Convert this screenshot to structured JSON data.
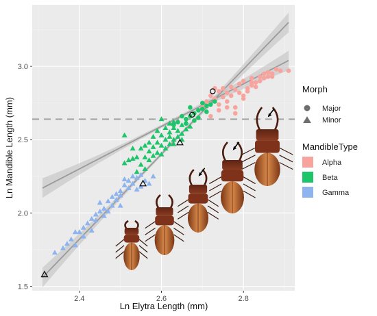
{
  "chart_data": {
    "type": "scatter",
    "xlabel": "Ln Elytra Length (mm)",
    "ylabel": "Ln Mandible Length (mm)",
    "xlim": [
      2.285,
      2.925
    ],
    "ylim": [
      1.47,
      3.42
    ],
    "x_ticks": [
      2.4,
      2.6,
      2.8
    ],
    "x_tick_labels": [
      "2.4",
      "2.6",
      "2.8"
    ],
    "y_ticks": [
      1.5,
      2.0,
      2.5,
      3.0
    ],
    "y_tick_labels": [
      "1.5",
      "2.0",
      "2.5",
      "3.0"
    ],
    "grid": true,
    "threshold_line": {
      "y": 2.64,
      "style": "dashed"
    },
    "fit_lines": [
      {
        "name": "minor_fit",
        "x": [
          2.31,
          2.91
        ],
        "y": [
          1.56,
          3.3
        ]
      },
      {
        "name": "major_fit",
        "x": [
          2.31,
          2.91
        ],
        "y": [
          2.17,
          3.04
        ]
      }
    ],
    "legend_position": "right",
    "legends": {
      "morph": {
        "title": "Morph",
        "items": [
          "Major",
          "Minor"
        ]
      },
      "mandible": {
        "title": "MandibleType",
        "items": [
          {
            "label": "Alpha",
            "color": "#F8A49E"
          },
          {
            "label": "Beta",
            "color": "#1DC46A"
          },
          {
            "label": "Gamma",
            "color": "#8DB4EE"
          }
        ]
      }
    },
    "series": [
      {
        "name": "Alpha",
        "color": "#F8A49E",
        "marker": "circle",
        "points": [
          [
            2.7,
            2.72
          ],
          [
            2.71,
            2.76
          ],
          [
            2.72,
            2.8
          ],
          [
            2.73,
            2.78
          ],
          [
            2.74,
            2.74
          ],
          [
            2.74,
            2.83
          ],
          [
            2.75,
            2.85
          ],
          [
            2.75,
            2.79
          ],
          [
            2.76,
            2.76
          ],
          [
            2.76,
            2.82
          ],
          [
            2.77,
            2.86
          ],
          [
            2.77,
            2.8
          ],
          [
            2.78,
            2.72
          ],
          [
            2.78,
            2.84
          ],
          [
            2.79,
            2.88
          ],
          [
            2.79,
            2.82
          ],
          [
            2.8,
            2.78
          ],
          [
            2.8,
            2.9
          ],
          [
            2.81,
            2.85
          ],
          [
            2.81,
            2.83
          ],
          [
            2.82,
            2.87
          ],
          [
            2.82,
            2.92
          ],
          [
            2.83,
            2.89
          ],
          [
            2.83,
            2.86
          ],
          [
            2.84,
            2.93
          ],
          [
            2.84,
            2.9
          ],
          [
            2.85,
            2.95
          ],
          [
            2.85,
            2.92
          ],
          [
            2.86,
            2.96
          ],
          [
            2.87,
            2.95
          ],
          [
            2.87,
            2.93
          ],
          [
            2.88,
            2.98
          ],
          [
            2.89,
            2.97
          ],
          [
            2.91,
            2.97
          ],
          [
            2.78,
            2.68
          ],
          [
            2.74,
            2.7
          ],
          [
            2.72,
            2.66
          ],
          [
            2.76,
            2.72
          ],
          [
            2.8,
            2.8
          ],
          [
            2.73,
            2.85
          ],
          [
            2.86,
            2.93
          ],
          [
            2.82,
            2.89
          ]
        ]
      },
      {
        "name": "Beta",
        "color": "#1DC46A",
        "marker": "circle",
        "points": [
          [
            2.63,
            2.6
          ],
          [
            2.64,
            2.62
          ],
          [
            2.66,
            2.64
          ],
          [
            2.67,
            2.66
          ],
          [
            2.68,
            2.68
          ],
          [
            2.69,
            2.7
          ],
          [
            2.7,
            2.71
          ],
          [
            2.71,
            2.73
          ],
          [
            2.72,
            2.74
          ],
          [
            2.69,
            2.65
          ],
          [
            2.71,
            2.69
          ],
          [
            2.66,
            2.61
          ],
          [
            2.73,
            2.76
          ],
          [
            2.67,
            2.72
          ],
          [
            2.68,
            2.63
          ],
          [
            2.65,
            2.66
          ],
          [
            2.7,
            2.75
          ]
        ]
      },
      {
        "name": "Beta",
        "color": "#1DC46A",
        "marker": "triangle",
        "points": [
          [
            2.51,
            2.53
          ],
          [
            2.53,
            2.37
          ],
          [
            2.54,
            2.28
          ],
          [
            2.55,
            2.33
          ],
          [
            2.56,
            2.38
          ],
          [
            2.56,
            2.3
          ],
          [
            2.57,
            2.42
          ],
          [
            2.57,
            2.36
          ],
          [
            2.58,
            2.45
          ],
          [
            2.58,
            2.39
          ],
          [
            2.59,
            2.48
          ],
          [
            2.59,
            2.41
          ],
          [
            2.6,
            2.4
          ],
          [
            2.6,
            2.46
          ],
          [
            2.61,
            2.5
          ],
          [
            2.61,
            2.44
          ],
          [
            2.62,
            2.55
          ],
          [
            2.62,
            2.47
          ],
          [
            2.63,
            2.58
          ],
          [
            2.63,
            2.5
          ],
          [
            2.64,
            2.56
          ],
          [
            2.64,
            2.52
          ],
          [
            2.65,
            2.6
          ],
          [
            2.65,
            2.54
          ],
          [
            2.66,
            2.57
          ],
          [
            2.66,
            2.62
          ],
          [
            2.67,
            2.59
          ],
          [
            2.6,
            2.64
          ],
          [
            2.62,
            2.61
          ],
          [
            2.58,
            2.52
          ],
          [
            2.55,
            2.44
          ],
          [
            2.59,
            2.56
          ],
          [
            2.61,
            2.58
          ],
          [
            2.63,
            2.62
          ],
          [
            2.57,
            2.48
          ],
          [
            2.53,
            2.44
          ],
          [
            2.54,
            2.38
          ],
          [
            2.63,
            2.47
          ],
          [
            2.65,
            2.5
          ],
          [
            2.6,
            2.53
          ],
          [
            2.62,
            2.52
          ],
          [
            2.56,
            2.46
          ],
          [
            2.51,
            2.34
          ],
          [
            2.52,
            2.36
          ]
        ]
      },
      {
        "name": "Gamma",
        "color": "#8DB4EE",
        "marker": "triangle",
        "points": [
          [
            2.34,
            1.73
          ],
          [
            2.37,
            1.79
          ],
          [
            2.38,
            1.82
          ],
          [
            2.39,
            1.78
          ],
          [
            2.4,
            1.87
          ],
          [
            2.41,
            1.9
          ],
          [
            2.42,
            1.93
          ],
          [
            2.43,
            1.88
          ],
          [
            2.44,
            1.99
          ],
          [
            2.44,
            1.95
          ],
          [
            2.45,
            2.01
          ],
          [
            2.46,
            2.03
          ],
          [
            2.46,
            1.98
          ],
          [
            2.47,
            2.08
          ],
          [
            2.48,
            2.05
          ],
          [
            2.48,
            2.11
          ],
          [
            2.49,
            2.13
          ],
          [
            2.49,
            2.09
          ],
          [
            2.5,
            2.15
          ],
          [
            2.5,
            2.12
          ],
          [
            2.51,
            2.19
          ],
          [
            2.52,
            2.17
          ],
          [
            2.52,
            2.22
          ],
          [
            2.53,
            2.2
          ],
          [
            2.53,
            2.25
          ],
          [
            2.54,
            2.24
          ],
          [
            2.55,
            2.18
          ],
          [
            2.55,
            2.26
          ],
          [
            2.56,
            2.22
          ],
          [
            2.57,
            2.2
          ],
          [
            2.43,
            1.96
          ],
          [
            2.45,
            2.07
          ],
          [
            2.47,
            2.01
          ],
          [
            2.51,
            2.23
          ],
          [
            2.54,
            2.16
          ],
          [
            2.41,
            1.84
          ],
          [
            2.39,
            1.87
          ],
          [
            2.58,
            2.25
          ],
          [
            2.36,
            1.76
          ],
          [
            2.5,
            2.05
          ]
        ]
      }
    ],
    "highlighted_points": [
      {
        "x": 2.315,
        "y": 1.58,
        "marker": "triangle"
      },
      {
        "x": 2.555,
        "y": 2.2,
        "marker": "triangle"
      },
      {
        "x": 2.645,
        "y": 2.48,
        "marker": "triangle"
      },
      {
        "x": 2.675,
        "y": 2.67,
        "marker": "circle"
      },
      {
        "x": 2.725,
        "y": 2.83,
        "marker": "circle"
      }
    ]
  }
}
